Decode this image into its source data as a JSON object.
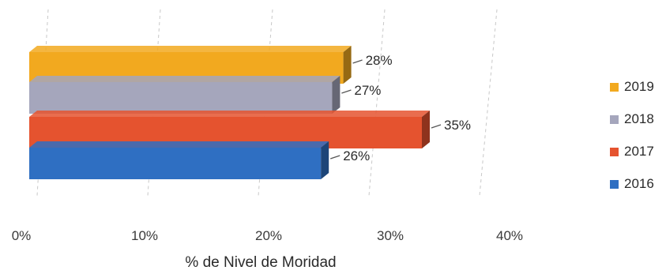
{
  "chart_data": {
    "type": "bar",
    "orientation": "horizontal",
    "style": "3d",
    "xlabel": "% de Nivel de Moridad",
    "ylabel": "",
    "xlim": [
      0,
      40
    ],
    "x_ticks": [
      "0%",
      "10%",
      "20%",
      "30%",
      "40%"
    ],
    "grid": "vertical-dashed",
    "legend_position": "right",
    "series": [
      {
        "name": "2019",
        "value": 28,
        "label": "28%",
        "color": "#F2A91F"
      },
      {
        "name": "2018",
        "value": 27,
        "label": "27%",
        "color": "#A5A6BC"
      },
      {
        "name": "2017",
        "value": 35,
        "label": "35%",
        "color": "#E5532F"
      },
      {
        "name": "2016",
        "value": 26,
        "label": "26%",
        "color": "#2F6FC2"
      }
    ]
  }
}
